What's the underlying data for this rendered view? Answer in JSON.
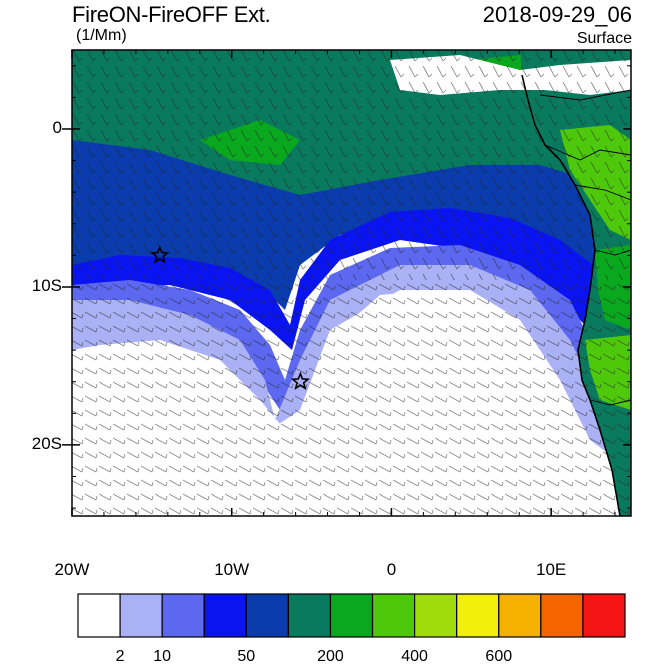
{
  "header": {
    "title": "FireON-FireOFF Ext.",
    "timestamp": "2018-09-29_06",
    "units": "(1/Mm)",
    "level": "Surface"
  },
  "map": {
    "region": "South-east Atlantic / West Africa coast",
    "lon_range": [
      -20,
      15
    ],
    "lat_range": [
      -24.5,
      5
    ],
    "x_ticks": [
      {
        "value": -20,
        "label": "20W"
      },
      {
        "value": -10,
        "label": "10W"
      },
      {
        "value": 0,
        "label": "0"
      },
      {
        "value": 10,
        "label": "10E"
      }
    ],
    "y_ticks": [
      {
        "value": 0,
        "label": "0"
      },
      {
        "value": -10,
        "label": "10S"
      },
      {
        "value": -20,
        "label": "20S"
      }
    ],
    "markers": [
      {
        "name": "star-1",
        "lon": -14.5,
        "lat": -8
      },
      {
        "name": "star-2",
        "lon": -5.7,
        "lat": -16
      }
    ],
    "features": [
      "filled contours of extinction difference",
      "wind barbs",
      "coastlines and country borders"
    ]
  },
  "colorbar": {
    "colors": [
      "#ffffff",
      "#aab1f5",
      "#5c68f0",
      "#0a14f0",
      "#0a3cad",
      "#0a7a5e",
      "#0aa81e",
      "#4ec80a",
      "#a0dc0a",
      "#f0f00a",
      "#f5b000",
      "#f56400",
      "#f51414"
    ],
    "labels": [
      {
        "text": "2",
        "index": 1
      },
      {
        "text": "10",
        "index": 2
      },
      {
        "text": "50",
        "index": 4
      },
      {
        "text": "200",
        "index": 6
      },
      {
        "text": "400",
        "index": 8
      },
      {
        "text": "600",
        "index": 10
      }
    ]
  }
}
